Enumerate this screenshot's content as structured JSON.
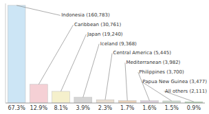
{
  "chart_data": {
    "type": "bar",
    "categories": [
      "67.3%",
      "12.9%",
      "8.1%",
      "3.9%",
      "2.3%",
      "1.7%",
      "1.6%",
      "1.5%",
      "0.9%"
    ],
    "values": [
      160783,
      30761,
      19240,
      9368,
      5445,
      3982,
      3700,
      3477,
      2111
    ],
    "value_labels": [
      "Indonesia (160,783)",
      "Caribbean (30,761)",
      "Japan (19,240)",
      "Iceland (9,368)",
      "Central America (5,445)",
      "Mediterranean (3,982)",
      "Philippines (3,700)",
      "Papua New Guinea (3,477)",
      "All others (2,111)"
    ],
    "data_labels": true,
    "colors": [
      "#cce5f5",
      "#f5d0d5",
      "#f5f0cc",
      "#d5d5d5",
      "#e8ddd0",
      "#e8d0b8",
      "#d8ccd8",
      "#ccd8cc",
      "#aad8aa"
    ],
    "ylim": [
      0,
      163998.66
    ],
    "tick_labels": "x"
  }
}
